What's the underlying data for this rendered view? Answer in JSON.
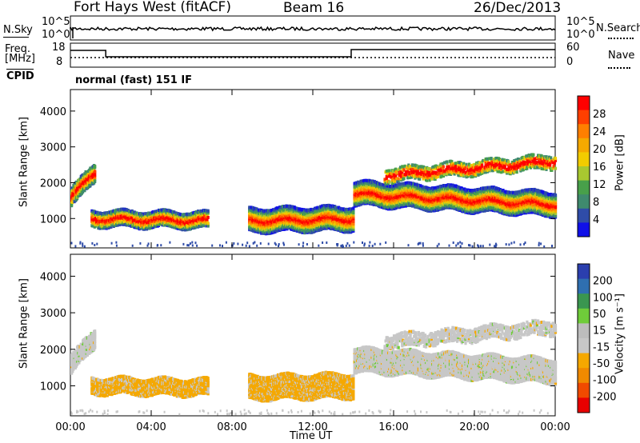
{
  "header": {
    "station": "Fort Hays West (fitACF)",
    "beam": "Beam 16",
    "date": "26/Dec/2013",
    "program": "normal (fast) 151 IF"
  },
  "top_panels": {
    "nsky_label": "N.Sky",
    "nsearch_label": "N.Search",
    "left_ticks": [
      "10^5",
      "10^0"
    ],
    "right_ticks": [
      "10^5",
      "10^0"
    ],
    "freq_label_1": "Freq.",
    "freq_label_2": "[MHz]",
    "freq_ticks": [
      "18",
      "8"
    ],
    "nave_label": "Nave",
    "nave_ticks": [
      "60",
      "0"
    ],
    "cpid_label": "CPID"
  },
  "chart_data": [
    {
      "type": "heatmap",
      "name": "power-panel",
      "ylabel": "Slant Range [km]",
      "yticks": [
        "4000",
        "3000",
        "2000",
        "1000"
      ],
      "ytick_values": [
        4000,
        3000,
        2000,
        1000
      ],
      "ylim": [
        180,
        4600
      ],
      "xlim": [
        0,
        24
      ],
      "colorbar_label": "Power [dB]",
      "colorbar_ticks": [
        "28",
        "24",
        "20",
        "16",
        "12",
        "8",
        "4"
      ],
      "colorbar_colors": [
        "#ff0000",
        "#ff3f00",
        "#ff7f00",
        "#f5a900",
        "#f2cc00",
        "#a8c830",
        "#48a04a",
        "#3f8a6e",
        "#2f4ca8",
        "#1010e8"
      ]
    },
    {
      "type": "heatmap",
      "name": "velocity-panel",
      "ylabel": "Slant Range [km]",
      "yticks": [
        "4000",
        "3000",
        "2000",
        "1000"
      ],
      "ytick_values": [
        4000,
        3000,
        2000,
        1000
      ],
      "ylim": [
        180,
        4600
      ],
      "xlim": [
        0,
        24
      ],
      "xlabel": "Time UT",
      "xticks": [
        "00:00",
        "04:00",
        "08:00",
        "12:00",
        "16:00",
        "20:00",
        "00:00"
      ],
      "xtick_values": [
        0,
        4,
        8,
        12,
        16,
        20,
        24
      ],
      "colorbar_label": "Velocity [m s⁻¹]",
      "colorbar_ticks": [
        "200",
        "100",
        "50",
        "15",
        "-15",
        "-50",
        "-100",
        "-200"
      ],
      "colorbar_colors": [
        "#2b3fae",
        "#2f6fb0",
        "#3a9650",
        "#6fcc3a",
        "#bdbdbd",
        "#c7c7c7",
        "#f5a800",
        "#f08a00",
        "#f04a00",
        "#e80000"
      ]
    }
  ]
}
